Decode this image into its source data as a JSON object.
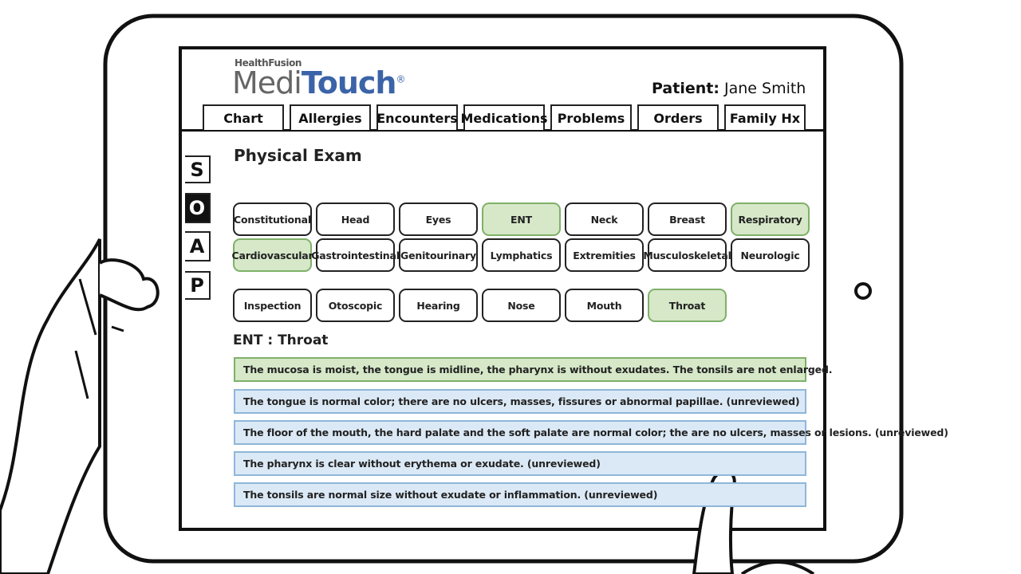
{
  "logo": {
    "brand": "HealthFusion",
    "name_part1": "Medi",
    "name_part2": "Touch",
    "mark": "®"
  },
  "patient": {
    "label": "Patient:",
    "name": "Jane Smith"
  },
  "tabs": [
    "Chart",
    "Allergies",
    "Encounters",
    "Medications",
    "Problems",
    "Orders",
    "Family Hx"
  ],
  "soap": {
    "letters": [
      "S",
      "O",
      "A",
      "P"
    ],
    "active": 1
  },
  "section_title": "Physical Exam",
  "systems": [
    {
      "label": "Constitutional",
      "selected": false
    },
    {
      "label": "Head",
      "selected": false
    },
    {
      "label": "Eyes",
      "selected": false
    },
    {
      "label": "ENT",
      "selected": true
    },
    {
      "label": "Neck",
      "selected": false
    },
    {
      "label": "Breast",
      "selected": false
    },
    {
      "label": "Respiratory",
      "selected": true
    },
    {
      "label": "Cardiovascular",
      "selected": true
    },
    {
      "label": "Gastrointestinal",
      "selected": false
    },
    {
      "label": "Genitourinary",
      "selected": false
    },
    {
      "label": "Lymphatics",
      "selected": false
    },
    {
      "label": "Extremities",
      "selected": false
    },
    {
      "label": "Musculoskeletal",
      "selected": false
    },
    {
      "label": "Neurologic",
      "selected": false
    }
  ],
  "subsections": [
    {
      "label": "Inspection",
      "selected": false
    },
    {
      "label": "Otoscopic",
      "selected": false
    },
    {
      "label": "Hearing",
      "selected": false
    },
    {
      "label": "Nose",
      "selected": false
    },
    {
      "label": "Mouth",
      "selected": false
    },
    {
      "label": "Throat",
      "selected": true
    }
  ],
  "detail_heading": "ENT : Throat",
  "findings": [
    {
      "text": "The mucosa is moist, the tongue is midline, the pharynx is without exudates. The tonsils are not enlarged.",
      "reviewed": true
    },
    {
      "text": "The tongue is normal color; there are no ulcers, masses, fissures or abnormal papillae. (unreviewed)",
      "reviewed": false
    },
    {
      "text": "The floor of the mouth, the hard palate and the soft palate are normal color; the are no ulcers, masses or lesions. (unreviewed)",
      "reviewed": false
    },
    {
      "text": "The pharynx is clear without erythema or exudate. (unreviewed)",
      "reviewed": false
    },
    {
      "text": "The tonsils are normal size without exudate or inflammation. (unreviewed)",
      "reviewed": false
    }
  ]
}
